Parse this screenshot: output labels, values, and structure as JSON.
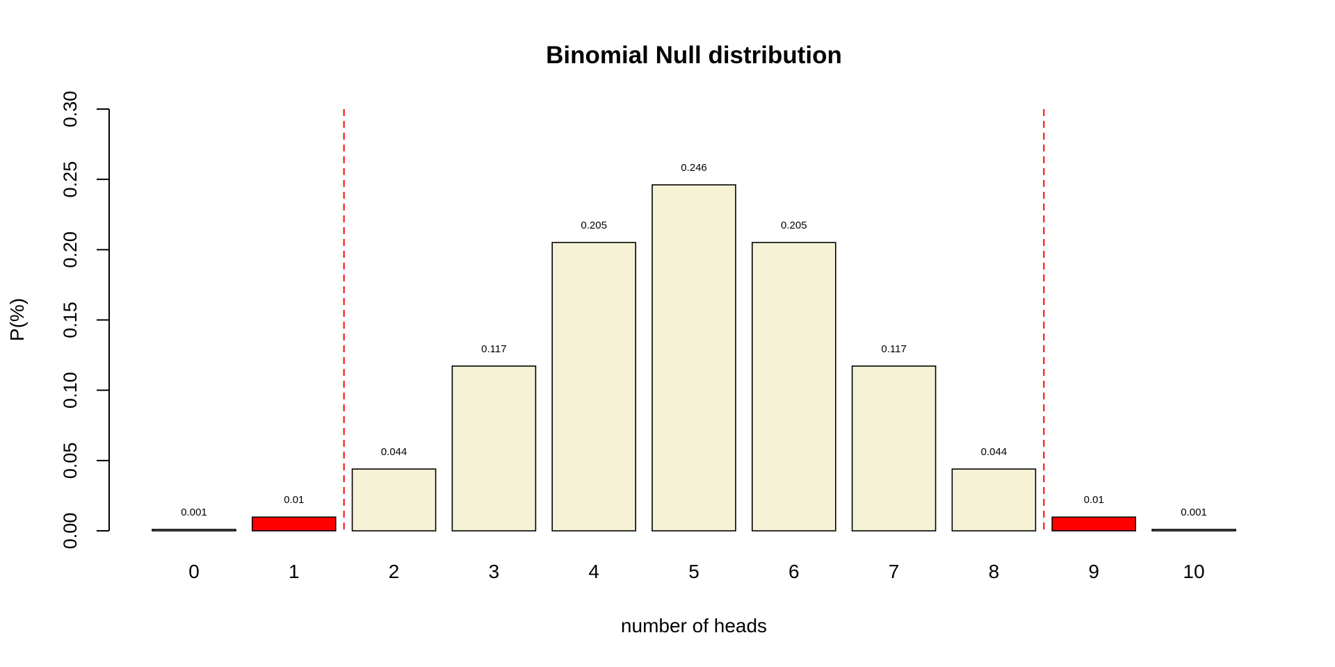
{
  "chart_data": {
    "type": "bar",
    "title": "Binomial Null distribution",
    "xlabel": "number of heads",
    "ylabel": "P(%)",
    "categories": [
      "0",
      "1",
      "2",
      "3",
      "4",
      "5",
      "6",
      "7",
      "8",
      "9",
      "10"
    ],
    "values": [
      0.000977,
      0.009766,
      0.043945,
      0.117188,
      0.205078,
      0.246094,
      0.205078,
      0.117188,
      0.043945,
      0.009766,
      0.000977
    ],
    "value_labels": [
      "0.001",
      "0.01",
      "0.044",
      "0.117",
      "0.205",
      "0.246",
      "0.205",
      "0.117",
      "0.044",
      "0.01",
      "0.001"
    ],
    "bar_colors": [
      "#F5F2D5",
      "#FF0000",
      "#F5F2D5",
      "#F5F2D5",
      "#F5F2D5",
      "#F5F2D5",
      "#F5F2D5",
      "#F5F2D5",
      "#F5F2D5",
      "#FF0000",
      "#F5F2D5"
    ],
    "ylim": [
      0,
      0.3
    ],
    "yticks": [
      "0.00",
      "0.05",
      "0.10",
      "0.15",
      "0.20",
      "0.25",
      "0.30"
    ],
    "ytick_values": [
      0,
      0.05,
      0.1,
      0.15,
      0.2,
      0.25,
      0.3
    ],
    "critical_lines_between": [
      [
        1,
        2
      ],
      [
        8,
        9
      ]
    ],
    "critical_line_color": "#FF0000",
    "grid": false,
    "legend": "none"
  }
}
